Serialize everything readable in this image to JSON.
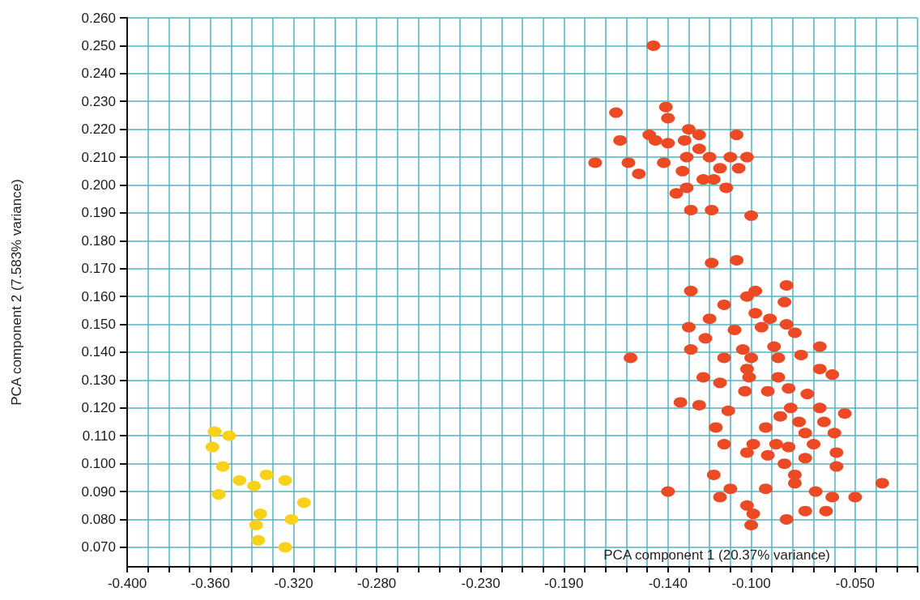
{
  "chart_data": {
    "type": "scatter",
    "xlabel": "PCA component 1 (20.37% variance)",
    "ylabel": "PCA component 2 (7.583% variance)",
    "xlim": [
      -0.4,
      -0.02
    ],
    "ylim": [
      0.063,
      0.26
    ],
    "xticks": [
      {
        "value": -0.4,
        "label": "-0.400"
      },
      {
        "value": -0.39,
        "label": null
      },
      {
        "value": -0.38,
        "label": null
      },
      {
        "value": -0.37,
        "label": null
      },
      {
        "value": -0.36,
        "label": "-0.360"
      },
      {
        "value": -0.35,
        "label": null
      },
      {
        "value": -0.34,
        "label": null
      },
      {
        "value": -0.33,
        "label": null
      },
      {
        "value": -0.32,
        "label": "-0.320"
      },
      {
        "value": -0.31,
        "label": null
      },
      {
        "value": -0.3,
        "label": null
      },
      {
        "value": -0.29,
        "label": null
      },
      {
        "value": -0.28,
        "label": "-0.280"
      },
      {
        "value": -0.27,
        "label": null
      },
      {
        "value": -0.26,
        "label": null
      },
      {
        "value": -0.25,
        "label": null
      },
      {
        "value": -0.24,
        "label": null
      },
      {
        "value": -0.23,
        "label": "-0.230"
      },
      {
        "value": -0.22,
        "label": null
      },
      {
        "value": -0.21,
        "label": null
      },
      {
        "value": -0.2,
        "label": null
      },
      {
        "value": -0.19,
        "label": "-0.190"
      },
      {
        "value": -0.18,
        "label": null
      },
      {
        "value": -0.17,
        "label": null
      },
      {
        "value": -0.16,
        "label": null
      },
      {
        "value": -0.15,
        "label": null
      },
      {
        "value": -0.14,
        "label": "-0.140"
      },
      {
        "value": -0.13,
        "label": null
      },
      {
        "value": -0.12,
        "label": null
      },
      {
        "value": -0.11,
        "label": null
      },
      {
        "value": -0.1,
        "label": "-0.100"
      },
      {
        "value": -0.09,
        "label": null
      },
      {
        "value": -0.08,
        "label": null
      },
      {
        "value": -0.07,
        "label": null
      },
      {
        "value": -0.06,
        "label": null
      },
      {
        "value": -0.05,
        "label": "-0.050"
      },
      {
        "value": -0.04,
        "label": null
      },
      {
        "value": -0.03,
        "label": null
      },
      {
        "value": -0.02,
        "label": null
      }
    ],
    "yticks": [
      {
        "value": 0.07,
        "label": "0.070"
      },
      {
        "value": 0.08,
        "label": "0.080"
      },
      {
        "value": 0.09,
        "label": "0.090"
      },
      {
        "value": 0.1,
        "label": "0.100"
      },
      {
        "value": 0.11,
        "label": "0.110"
      },
      {
        "value": 0.12,
        "label": "0.120"
      },
      {
        "value": 0.13,
        "label": "0.130"
      },
      {
        "value": 0.14,
        "label": "0.140"
      },
      {
        "value": 0.15,
        "label": "0.150"
      },
      {
        "value": 0.16,
        "label": "0.160"
      },
      {
        "value": 0.17,
        "label": "0.170"
      },
      {
        "value": 0.18,
        "label": "0.180"
      },
      {
        "value": 0.19,
        "label": "0.190"
      },
      {
        "value": 0.2,
        "label": "0.200"
      },
      {
        "value": 0.21,
        "label": "0.210"
      },
      {
        "value": 0.22,
        "label": "0.220"
      },
      {
        "value": 0.23,
        "label": "0.230"
      },
      {
        "value": 0.24,
        "label": "0.240"
      },
      {
        "value": 0.25,
        "label": "0.250"
      },
      {
        "value": 0.26,
        "label": "0.260"
      }
    ],
    "grid": true,
    "marker": "circle",
    "series": [
      {
        "color": "#f8d21a",
        "x": [
          -0.358,
          -0.351,
          -0.359,
          -0.354,
          -0.346,
          -0.339,
          -0.333,
          -0.324,
          -0.356,
          -0.315,
          -0.336,
          -0.321,
          -0.338,
          -0.337,
          -0.324
        ],
        "values": [
          0.1115,
          0.11,
          0.106,
          0.099,
          0.094,
          0.092,
          0.096,
          0.094,
          0.089,
          0.086,
          0.082,
          0.08,
          0.078,
          0.0725,
          0.07
        ]
      },
      {
        "color": "#ec4a24",
        "x": [
          -0.147,
          -0.165,
          -0.141,
          -0.14,
          -0.163,
          -0.149,
          -0.146,
          -0.14,
          -0.13,
          -0.125,
          -0.107,
          -0.132,
          -0.175,
          -0.159,
          -0.142,
          -0.131,
          -0.12,
          -0.11,
          -0.102,
          -0.125,
          -0.133,
          -0.115,
          -0.106,
          -0.154,
          -0.123,
          -0.118,
          -0.112,
          -0.136,
          -0.131,
          -0.129,
          -0.119,
          -0.1,
          -0.119,
          -0.107,
          -0.129,
          -0.083,
          -0.098,
          -0.102,
          -0.084,
          -0.113,
          -0.12,
          -0.098,
          -0.091,
          -0.083,
          -0.13,
          -0.108,
          -0.095,
          -0.079,
          -0.122,
          -0.129,
          -0.104,
          -0.089,
          -0.067,
          -0.113,
          -0.1,
          -0.087,
          -0.076,
          -0.102,
          -0.067,
          -0.061,
          -0.123,
          -0.115,
          -0.101,
          -0.087,
          -0.082,
          -0.103,
          -0.092,
          -0.073,
          -0.134,
          -0.125,
          -0.111,
          -0.081,
          -0.067,
          -0.055,
          -0.086,
          -0.077,
          -0.065,
          -0.117,
          -0.093,
          -0.074,
          -0.06,
          -0.088,
          -0.113,
          -0.099,
          -0.082,
          -0.07,
          -0.059,
          -0.092,
          -0.102,
          -0.074,
          -0.084,
          -0.059,
          -0.118,
          -0.079,
          -0.079,
          -0.037,
          -0.14,
          -0.11,
          -0.093,
          -0.069,
          -0.061,
          -0.05,
          -0.115,
          -0.102,
          -0.074,
          -0.064,
          -0.099,
          -0.1,
          -0.083,
          -0.158
        ],
        "values": [
          0.25,
          0.226,
          0.228,
          0.224,
          0.216,
          0.218,
          0.216,
          0.215,
          0.22,
          0.218,
          0.218,
          0.216,
          0.208,
          0.208,
          0.208,
          0.21,
          0.21,
          0.21,
          0.21,
          0.213,
          0.205,
          0.206,
          0.206,
          0.204,
          0.202,
          0.202,
          0.199,
          0.197,
          0.199,
          0.191,
          0.191,
          0.189,
          0.172,
          0.173,
          0.162,
          0.164,
          0.162,
          0.16,
          0.158,
          0.157,
          0.152,
          0.154,
          0.152,
          0.15,
          0.149,
          0.148,
          0.149,
          0.147,
          0.145,
          0.141,
          0.141,
          0.142,
          0.142,
          0.138,
          0.138,
          0.138,
          0.139,
          0.134,
          0.134,
          0.132,
          0.131,
          0.129,
          0.131,
          0.131,
          0.127,
          0.126,
          0.126,
          0.125,
          0.122,
          0.121,
          0.119,
          0.12,
          0.12,
          0.118,
          0.117,
          0.115,
          0.115,
          0.113,
          0.113,
          0.111,
          0.111,
          0.107,
          0.107,
          0.107,
          0.106,
          0.107,
          0.104,
          0.103,
          0.104,
          0.102,
          0.1,
          0.099,
          0.096,
          0.096,
          0.093,
          0.093,
          0.09,
          0.091,
          0.091,
          0.09,
          0.088,
          0.088,
          0.088,
          0.085,
          0.083,
          0.083,
          0.082,
          0.078,
          0.08,
          0.138
        ]
      }
    ]
  }
}
